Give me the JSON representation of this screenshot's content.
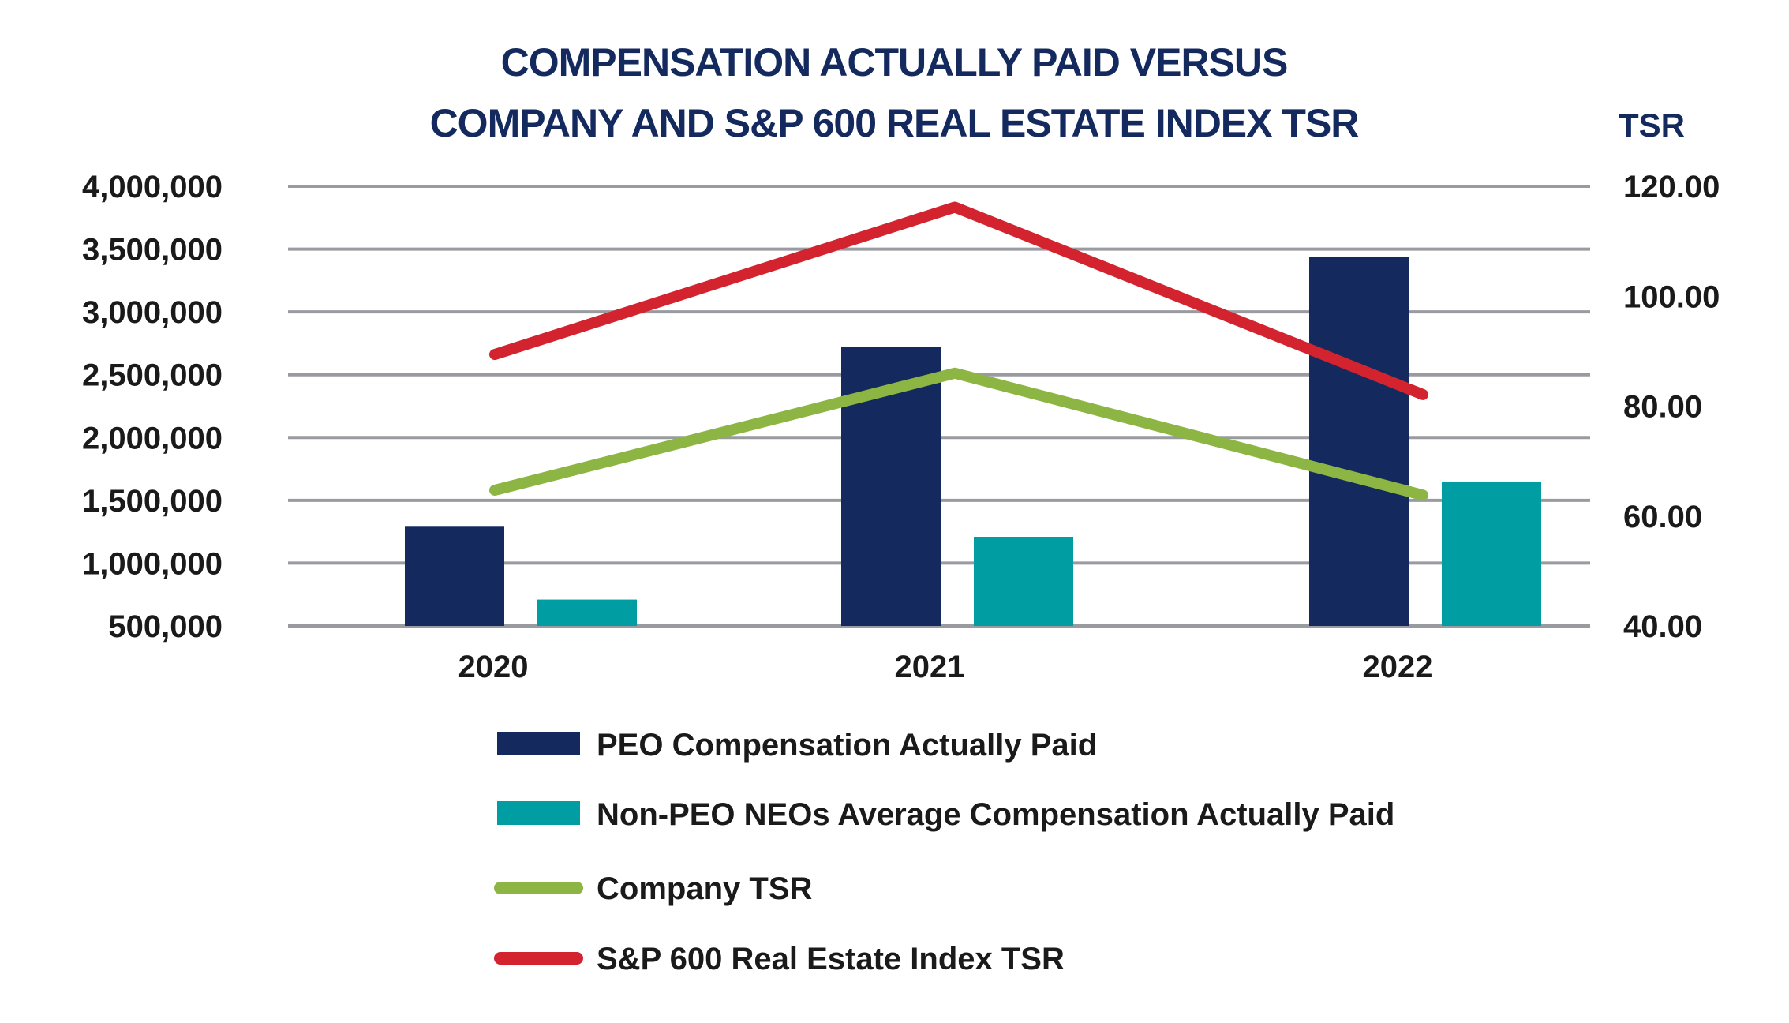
{
  "chart_data": {
    "type": "bar",
    "title_lines": [
      "COMPENSATION ACTUALLY PAID VERSUS",
      "COMPANY AND S&P 600 REAL ESTATE INDEX TSR"
    ],
    "categories": [
      "2020",
      "2021",
      "2022"
    ],
    "series": [
      {
        "name": "PEO Compensation Actually Paid",
        "kind": "bar",
        "axis": "left",
        "color": "#14295e",
        "values": [
          1290000,
          2720000,
          3440000
        ]
      },
      {
        "name": "Non-PEO NEOs Average Compensation Actually Paid",
        "kind": "bar",
        "axis": "left",
        "color": "#009ea3",
        "values": [
          710000,
          1210000,
          1650000
        ]
      },
      {
        "name": "Company TSR",
        "kind": "line",
        "axis": "right",
        "color": "#8db543",
        "values": [
          64.7,
          86.0,
          63.8
        ]
      },
      {
        "name": "S&P 600 Real Estate Index TSR",
        "kind": "line",
        "axis": "right",
        "color": "#d3232e",
        "values": [
          89.4,
          116.2,
          82.1
        ]
      }
    ],
    "left_axis": {
      "ylim": [
        500000,
        4000000
      ],
      "ticks": [
        500000,
        1000000,
        1500000,
        2000000,
        2500000,
        3000000,
        3500000,
        4000000
      ],
      "tick_labels": [
        "500,000",
        "1,000,000",
        "1,500,000",
        "2,000,000",
        "2,500,000",
        "3,000,000",
        "3,500,000",
        "4,000,000"
      ]
    },
    "right_axis": {
      "label": "TSR",
      "ylim": [
        40,
        120
      ],
      "ticks": [
        40,
        60,
        80,
        100,
        120
      ],
      "tick_labels": [
        "40.00",
        "60.00",
        "80.00",
        "100.00",
        "120.00"
      ]
    },
    "grid": true,
    "legend_position": "bottom"
  }
}
